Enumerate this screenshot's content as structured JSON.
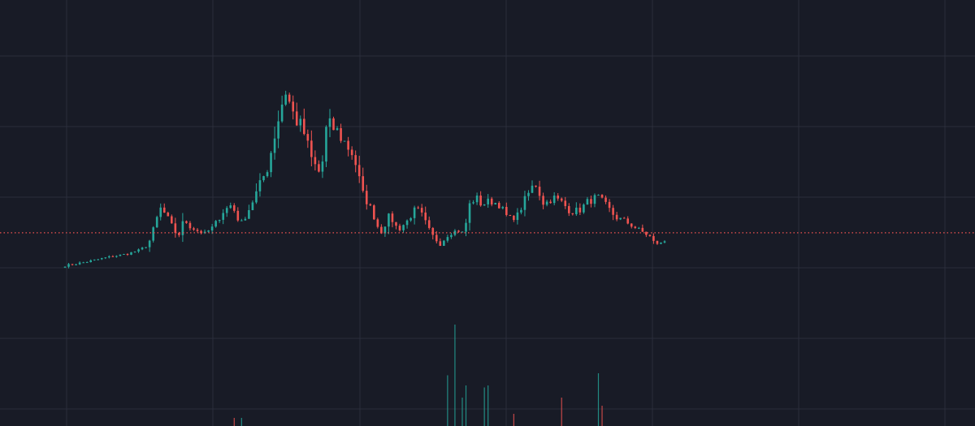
{
  "theme": {
    "background": "#181b26",
    "grid": "#2a2e3b",
    "up": "#26a69a",
    "down": "#ef5350",
    "price_line": "#ef5350"
  },
  "chart_data": {
    "type": "candlestick",
    "grid": true,
    "legend": "none",
    "title": "",
    "xlabel": "",
    "ylabel": "",
    "x_count": 164,
    "ylim": [
      0,
      100
    ],
    "current_price": 20.5,
    "candles": [],
    "volume": {
      "ylim": [
        0,
        100
      ],
      "bars": []
    }
  }
}
